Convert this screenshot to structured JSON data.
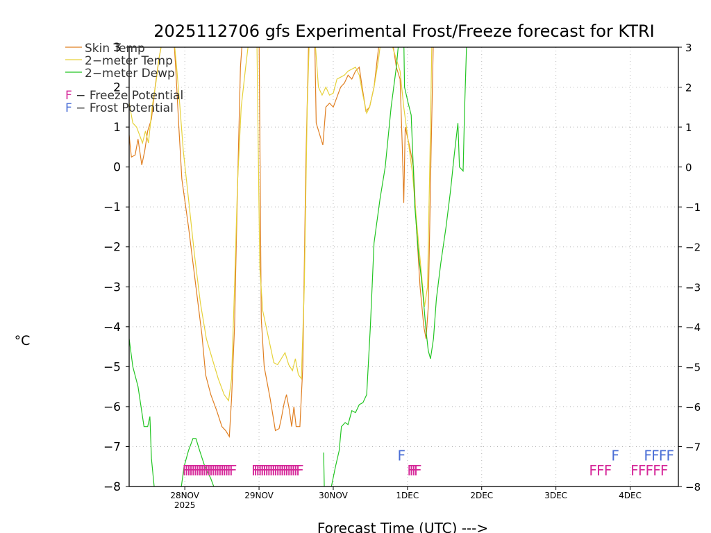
{
  "chart_data": {
    "type": "line",
    "title": "2025112706 gfs Experimental Frost/Freeze forecast for KTRI",
    "ylabel": "°C",
    "xlabel": "Forecast Time (UTC) --->",
    "ylim": [
      -8,
      3
    ],
    "yticks": [
      -8,
      -7,
      -6,
      -5,
      -4,
      -3,
      -2,
      -1,
      0,
      1,
      2,
      3
    ],
    "ytick_labels": [
      "−8",
      "−7",
      "−6",
      "−5",
      "−4",
      "−3",
      "−2",
      "−1",
      "0",
      "1",
      "2",
      "3"
    ],
    "xlim_days": [
      0.0,
      7.4
    ],
    "x_ticks": [
      {
        "day": 0.75,
        "label": "28NOV",
        "sublabel": "2025"
      },
      {
        "day": 1.75,
        "label": "29NOV"
      },
      {
        "day": 2.75,
        "label": "30NOV"
      },
      {
        "day": 3.75,
        "label": "1DEC"
      },
      {
        "day": 4.75,
        "label": "2DEC"
      },
      {
        "day": 5.75,
        "label": "3DEC"
      },
      {
        "day": 6.75,
        "label": "4DEC"
      }
    ],
    "grid": true,
    "legend": [
      {
        "label": "Skin Temp",
        "color": "#e07f22"
      },
      {
        "label": "2−meter Temp",
        "color": "#e6d23a"
      },
      {
        "label": "2−meter Dewp",
        "color": "#22c522"
      }
    ],
    "potential_legend": [
      {
        "letter": "F",
        "text": " − Freeze Potential",
        "color": "#d62a9a"
      },
      {
        "letter": "F",
        "text": " − Frost Potential",
        "color": "#4a6ed6"
      }
    ],
    "series": [
      {
        "name": "Skin Temp",
        "color": "#e07f22",
        "points": [
          [
            0.0,
            0.8
          ],
          [
            0.03,
            0.25
          ],
          [
            0.08,
            0.3
          ],
          [
            0.12,
            0.7
          ],
          [
            0.17,
            0.05
          ],
          [
            0.21,
            0.4
          ],
          [
            0.25,
            0.9
          ],
          [
            0.3,
            1.2
          ],
          [
            0.35,
            2.0
          ],
          [
            0.4,
            2.7
          ],
          [
            0.46,
            3.3
          ],
          [
            0.6,
            3.3
          ],
          [
            0.63,
            2.4
          ],
          [
            0.67,
            1.0
          ],
          [
            0.71,
            -0.3
          ],
          [
            0.8,
            -1.5
          ],
          [
            0.9,
            -3.0
          ],
          [
            0.98,
            -4.2
          ],
          [
            1.03,
            -5.2
          ],
          [
            1.1,
            -5.7
          ],
          [
            1.18,
            -6.1
          ],
          [
            1.25,
            -6.5
          ],
          [
            1.3,
            -6.6
          ],
          [
            1.35,
            -6.75
          ],
          [
            1.38,
            -5.8
          ],
          [
            1.42,
            -4.0
          ],
          [
            1.46,
            -0.5
          ],
          [
            1.5,
            2.5
          ],
          [
            1.53,
            3.3
          ],
          [
            1.75,
            3.3
          ],
          [
            1.78,
            -3.8
          ],
          [
            1.82,
            -5.0
          ],
          [
            1.9,
            -5.8
          ],
          [
            1.97,
            -6.6
          ],
          [
            2.02,
            -6.55
          ],
          [
            2.05,
            -6.3
          ],
          [
            2.09,
            -5.9
          ],
          [
            2.12,
            -5.7
          ],
          [
            2.16,
            -6.1
          ],
          [
            2.19,
            -6.5
          ],
          [
            2.22,
            -6.0
          ],
          [
            2.25,
            -6.5
          ],
          [
            2.3,
            -6.5
          ],
          [
            2.34,
            -5.0
          ],
          [
            2.38,
            0.0
          ],
          [
            2.42,
            3.3
          ],
          [
            2.5,
            3.3
          ],
          [
            2.52,
            1.1
          ],
          [
            2.61,
            0.55
          ],
          [
            2.65,
            1.5
          ],
          [
            2.7,
            1.6
          ],
          [
            2.75,
            1.5
          ],
          [
            2.8,
            1.75
          ],
          [
            2.85,
            2.0
          ],
          [
            2.9,
            2.1
          ],
          [
            2.95,
            2.3
          ],
          [
            3.0,
            2.2
          ],
          [
            3.05,
            2.4
          ],
          [
            3.1,
            2.5
          ],
          [
            3.14,
            2.0
          ],
          [
            3.19,
            1.4
          ],
          [
            3.24,
            1.5
          ],
          [
            3.3,
            2.0
          ],
          [
            3.38,
            3.3
          ],
          [
            3.5,
            3.3
          ],
          [
            3.56,
            3.0
          ],
          [
            3.6,
            2.5
          ],
          [
            3.65,
            2.2
          ],
          [
            3.68,
            0.5
          ],
          [
            3.7,
            -0.9
          ],
          [
            3.72,
            1.0
          ],
          [
            3.78,
            0.5
          ],
          [
            3.83,
            0.0
          ],
          [
            3.87,
            -1.5
          ],
          [
            3.92,
            -3.0
          ],
          [
            3.97,
            -4.0
          ],
          [
            4.0,
            -4.3
          ],
          [
            4.03,
            -3.5
          ],
          [
            4.07,
            0.5
          ],
          [
            4.1,
            3.3
          ],
          [
            4.12,
            3.3
          ]
        ]
      },
      {
        "name": "2-meter Temp",
        "color": "#e6d23a",
        "points": [
          [
            0.0,
            1.6
          ],
          [
            0.05,
            1.1
          ],
          [
            0.1,
            1.0
          ],
          [
            0.14,
            0.8
          ],
          [
            0.18,
            0.6
          ],
          [
            0.22,
            0.9
          ],
          [
            0.26,
            0.6
          ],
          [
            0.31,
            1.5
          ],
          [
            0.36,
            2.1
          ],
          [
            0.41,
            2.8
          ],
          [
            0.46,
            3.3
          ],
          [
            0.6,
            3.3
          ],
          [
            0.64,
            2.5
          ],
          [
            0.68,
            1.6
          ],
          [
            0.73,
            0.4
          ],
          [
            0.8,
            -0.8
          ],
          [
            0.88,
            -2.2
          ],
          [
            0.96,
            -3.4
          ],
          [
            1.04,
            -4.3
          ],
          [
            1.12,
            -4.8
          ],
          [
            1.2,
            -5.3
          ],
          [
            1.28,
            -5.7
          ],
          [
            1.34,
            -5.85
          ],
          [
            1.38,
            -5.3
          ],
          [
            1.42,
            -3.0
          ],
          [
            1.46,
            -0.4
          ],
          [
            1.51,
            1.5
          ],
          [
            1.57,
            2.5
          ],
          [
            1.62,
            3.3
          ],
          [
            1.72,
            3.3
          ],
          [
            1.76,
            -2.5
          ],
          [
            1.8,
            -3.6
          ],
          [
            1.88,
            -4.3
          ],
          [
            1.95,
            -4.9
          ],
          [
            2.0,
            -4.95
          ],
          [
            2.05,
            -4.8
          ],
          [
            2.1,
            -4.65
          ],
          [
            2.15,
            -4.95
          ],
          [
            2.2,
            -5.1
          ],
          [
            2.24,
            -4.8
          ],
          [
            2.28,
            -5.2
          ],
          [
            2.32,
            -5.3
          ],
          [
            2.36,
            -3.0
          ],
          [
            2.4,
            1.5
          ],
          [
            2.43,
            3.3
          ],
          [
            2.5,
            3.3
          ],
          [
            2.55,
            2.0
          ],
          [
            2.6,
            1.8
          ],
          [
            2.65,
            2.0
          ],
          [
            2.7,
            1.8
          ],
          [
            2.75,
            1.85
          ],
          [
            2.8,
            2.2
          ],
          [
            2.85,
            2.25
          ],
          [
            2.9,
            2.3
          ],
          [
            2.95,
            2.4
          ],
          [
            3.0,
            2.45
          ],
          [
            3.05,
            2.5
          ],
          [
            3.1,
            2.3
          ],
          [
            3.15,
            1.8
          ],
          [
            3.2,
            1.35
          ],
          [
            3.24,
            1.5
          ],
          [
            3.3,
            2.0
          ],
          [
            3.36,
            2.7
          ],
          [
            3.4,
            3.3
          ],
          [
            3.5,
            3.3
          ],
          [
            3.55,
            3.0
          ],
          [
            3.6,
            2.7
          ],
          [
            3.65,
            2.4
          ],
          [
            3.7,
            1.5
          ],
          [
            3.75,
            0.8
          ],
          [
            3.82,
            -0.2
          ],
          [
            3.88,
            -1.5
          ],
          [
            3.93,
            -2.5
          ],
          [
            3.98,
            -3.5
          ],
          [
            4.02,
            -3.0
          ],
          [
            4.06,
            1.0
          ],
          [
            4.08,
            3.3
          ],
          [
            4.12,
            3.3
          ]
        ]
      },
      {
        "name": "2-meter Dewp",
        "color": "#22c522",
        "points": [
          [
            0.0,
            -4.3
          ],
          [
            0.05,
            -5.0
          ],
          [
            0.12,
            -5.5
          ],
          [
            0.2,
            -6.5
          ],
          [
            0.25,
            -6.5
          ],
          [
            0.28,
            -6.25
          ],
          [
            0.3,
            -7.3
          ],
          [
            0.34,
            -8.05
          ],
          null,
          [
            0.7,
            -8.05
          ],
          [
            0.74,
            -7.5
          ],
          [
            0.8,
            -7.1
          ],
          [
            0.86,
            -6.8
          ],
          [
            0.9,
            -6.8
          ],
          [
            0.95,
            -7.1
          ],
          [
            1.02,
            -7.5
          ],
          [
            1.1,
            -7.8
          ],
          [
            1.15,
            -8.05
          ],
          null,
          [
            2.62,
            -7.15
          ],
          [
            2.63,
            -8.05
          ],
          null,
          [
            2.72,
            -8.05
          ],
          [
            2.78,
            -7.5
          ],
          [
            2.83,
            -7.1
          ],
          [
            2.86,
            -6.5
          ],
          [
            2.91,
            -6.4
          ],
          [
            2.95,
            -6.45
          ],
          [
            3.0,
            -6.1
          ],
          [
            3.05,
            -6.15
          ],
          [
            3.1,
            -5.95
          ],
          [
            3.15,
            -5.9
          ],
          [
            3.2,
            -5.7
          ],
          [
            3.25,
            -4.0
          ],
          [
            3.3,
            -1.9
          ],
          [
            3.38,
            -0.8
          ],
          [
            3.45,
            0.0
          ],
          [
            3.53,
            1.5
          ],
          [
            3.6,
            2.5
          ],
          [
            3.64,
            3.3
          ],
          [
            3.7,
            3.3
          ],
          [
            3.71,
            2.0
          ],
          [
            3.76,
            1.6
          ],
          [
            3.8,
            1.3
          ],
          [
            3.85,
            -1.0
          ],
          [
            3.9,
            -2.2
          ],
          [
            3.95,
            -3.0
          ],
          [
            4.0,
            -4.1
          ],
          [
            4.03,
            -4.6
          ],
          [
            4.06,
            -4.8
          ],
          [
            4.1,
            -4.3
          ],
          [
            4.14,
            -3.3
          ],
          [
            4.2,
            -2.4
          ],
          [
            4.27,
            -1.5
          ],
          [
            4.33,
            -0.6
          ],
          [
            4.38,
            0.3
          ],
          [
            4.43,
            1.1
          ],
          [
            4.45,
            0.0
          ],
          [
            4.5,
            -0.1
          ],
          [
            4.52,
            1.5
          ],
          [
            4.55,
            3.3
          ]
        ]
      }
    ],
    "freeze_potential_hours": [
      0.77,
      0.8,
      0.83,
      0.86,
      0.89,
      0.92,
      0.95,
      0.98,
      1.01,
      1.04,
      1.07,
      1.1,
      1.13,
      1.16,
      1.19,
      1.22,
      1.25,
      1.28,
      1.31,
      1.34,
      1.37,
      1.4,
      1.7,
      1.73,
      1.76,
      1.79,
      1.82,
      1.85,
      1.88,
      1.91,
      1.94,
      1.97,
      2.0,
      2.03,
      2.06,
      2.09,
      2.12,
      2.15,
      2.18,
      2.21,
      2.24,
      2.27,
      2.3,
      3.8,
      3.83,
      3.86,
      3.89,
      6.25,
      6.35,
      6.45,
      6.81,
      6.91,
      7.01,
      7.11,
      7.21
    ],
    "frost_potential_hours": [
      3.67,
      6.55,
      6.99,
      7.09,
      7.19,
      7.29
    ]
  }
}
